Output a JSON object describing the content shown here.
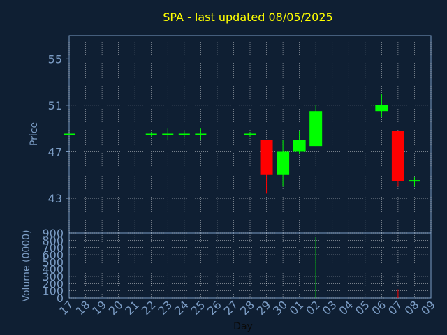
{
  "chart_data": {
    "type": "candlestick",
    "title": "SPA - last updated 08/05/2025",
    "xlabel": "Day",
    "x_ticks": [
      "17",
      "18",
      "19",
      "20",
      "21",
      "22",
      "23",
      "24",
      "25",
      "26",
      "27",
      "28",
      "29",
      "30",
      "01",
      "02",
      "03",
      "04",
      "05",
      "06",
      "07",
      "08",
      "09"
    ],
    "price_panel": {
      "ylabel": "Price",
      "ylim": [
        40,
        57
      ],
      "y_ticks": [
        43,
        47,
        51,
        55
      ],
      "grid": true,
      "candles": [
        {
          "day": "17",
          "open": 48.5,
          "high": 48.5,
          "low": 48.5,
          "close": 48.5
        },
        {
          "day": "22",
          "open": 48.5,
          "high": 48.7,
          "low": 48.3,
          "close": 48.5
        },
        {
          "day": "23",
          "open": 48.5,
          "high": 49.0,
          "low": 48.0,
          "close": 48.5
        },
        {
          "day": "24",
          "open": 48.5,
          "high": 48.8,
          "low": 48.2,
          "close": 48.5
        },
        {
          "day": "25",
          "open": 48.5,
          "high": 49.0,
          "low": 48.0,
          "close": 48.5
        },
        {
          "day": "28",
          "open": 48.5,
          "high": 48.7,
          "low": 48.3,
          "close": 48.5
        },
        {
          "day": "29",
          "open": 48.0,
          "high": 48.0,
          "low": 43.4,
          "close": 45.0
        },
        {
          "day": "30",
          "open": 45.0,
          "high": 48.0,
          "low": 44.0,
          "close": 47.0
        },
        {
          "day": "01",
          "open": 47.0,
          "high": 48.8,
          "low": 46.8,
          "close": 48.0
        },
        {
          "day": "02",
          "open": 47.5,
          "high": 51.0,
          "low": 47.5,
          "close": 50.5
        },
        {
          "day": "06",
          "open": 50.5,
          "high": 52.0,
          "low": 50.0,
          "close": 51.0
        },
        {
          "day": "07",
          "open": 48.8,
          "high": 48.8,
          "low": 44.0,
          "close": 44.5
        },
        {
          "day": "08",
          "open": 44.5,
          "high": 44.8,
          "low": 44.0,
          "close": 44.5
        }
      ]
    },
    "volume_panel": {
      "ylabel": "Volume (0000)",
      "ylim": [
        0,
        900
      ],
      "y_ticks": [
        0,
        100,
        200,
        300,
        400,
        500,
        600,
        700,
        800,
        900
      ],
      "bars": [
        {
          "day": "02",
          "value": 850,
          "direction": "up"
        },
        {
          "day": "07",
          "value": 120,
          "direction": "down"
        }
      ]
    },
    "colors": {
      "up": "#00ff00",
      "down": "#ff0000",
      "background": "#0f1f33",
      "axes": "#7b9cc4",
      "grid": "#ffffff",
      "title": "#ffff00"
    }
  }
}
